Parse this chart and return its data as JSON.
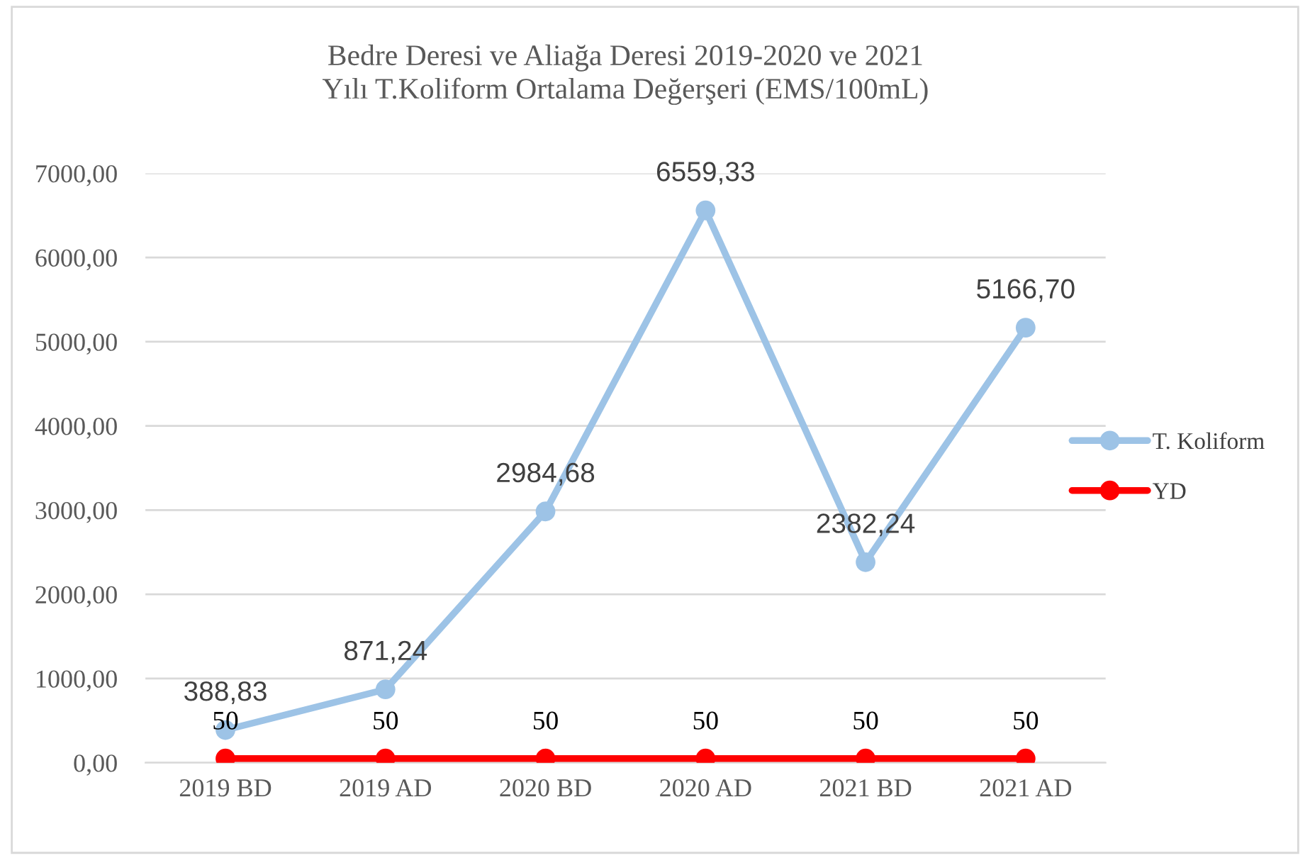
{
  "chart_data": {
    "type": "line",
    "title": "Bedre Deresi ve Aliağa Deresi 2019-2020 ve 2021\nYılı T.Koliform Ortalama Değerşeri (EMS/100mL)",
    "categories": [
      "2019 BD",
      "2019 AD",
      "2020 BD",
      "2020 AD",
      "2021 BD",
      "2021 AD"
    ],
    "series": [
      {
        "name": "T. Koliform",
        "color": "#9dc3e6",
        "values": [
          388.83,
          871.24,
          2984.68,
          6559.33,
          2382.24,
          5166.7
        ],
        "value_labels": [
          "388,83",
          "871,24",
          "2984,68",
          "6559,33",
          "2382,24",
          "5166,70"
        ]
      },
      {
        "name": "YD",
        "color": "#ff0000",
        "values": [
          50,
          50,
          50,
          50,
          50,
          50
        ],
        "value_labels": [
          "50",
          "50",
          "50",
          "50",
          "50",
          "50"
        ]
      }
    ],
    "ylim": [
      0,
      7000
    ],
    "yticks": [
      {
        "value": 0,
        "label": "0,00"
      },
      {
        "value": 1000,
        "label": "1000,00"
      },
      {
        "value": 2000,
        "label": "2000,00"
      },
      {
        "value": 3000,
        "label": "3000,00"
      },
      {
        "value": 4000,
        "label": "4000,00"
      },
      {
        "value": 5000,
        "label": "5000,00"
      },
      {
        "value": 6000,
        "label": "6000,00"
      },
      {
        "value": 7000,
        "label": "7000,00"
      }
    ],
    "grid": "y",
    "legend": "right",
    "marker": "circle"
  }
}
